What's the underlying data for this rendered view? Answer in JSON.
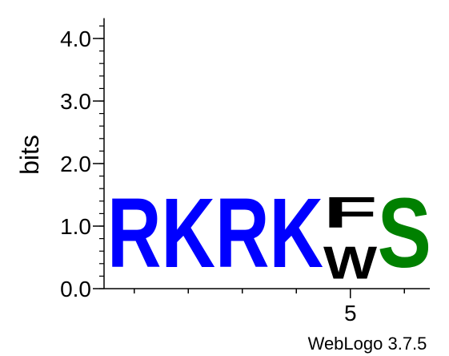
{
  "chart_data": {
    "type": "sequence-logo",
    "ylabel": "bits",
    "ylim": [
      0,
      4.3
    ],
    "yticks": [
      {
        "value": 0,
        "label": "0.0"
      },
      {
        "value": 1,
        "label": "1.0"
      },
      {
        "value": 2,
        "label": "2.0"
      },
      {
        "value": 3,
        "label": "3.0"
      },
      {
        "value": 4,
        "label": "4.0"
      }
    ],
    "ytick_minor_step": 0.2,
    "xticks": [
      {
        "position": 5,
        "label": "5"
      }
    ],
    "positions": [
      {
        "position": 1,
        "letters": [
          {
            "char": "R",
            "bits": 1.77,
            "color": "#0000ff"
          }
        ]
      },
      {
        "position": 2,
        "letters": [
          {
            "char": "K",
            "bits": 1.77,
            "color": "#0000ff"
          }
        ]
      },
      {
        "position": 3,
        "letters": [
          {
            "char": "R",
            "bits": 1.77,
            "color": "#0000ff"
          }
        ]
      },
      {
        "position": 4,
        "letters": [
          {
            "char": "K",
            "bits": 1.77,
            "color": "#0000ff"
          }
        ]
      },
      {
        "position": 5,
        "letters": [
          {
            "char": "W",
            "bits": 0.82,
            "color": "#000000"
          },
          {
            "char": "F",
            "bits": 0.78,
            "color": "#000000"
          }
        ]
      },
      {
        "position": 6,
        "letters": [
          {
            "char": "S",
            "bits": 1.77,
            "color": "#008000"
          }
        ]
      }
    ],
    "credit": "WebLogo 3.7.5"
  }
}
